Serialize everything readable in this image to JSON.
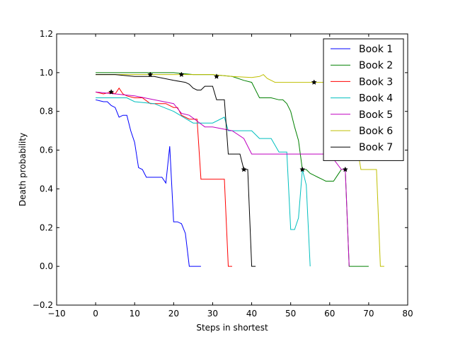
{
  "chart_data": {
    "type": "line",
    "title": "",
    "xlabel": "Steps in shortest",
    "ylabel": "Death probability",
    "xlim": [
      -10,
      80
    ],
    "ylim": [
      -0.2,
      1.2
    ],
    "xticks": [
      "−10",
      "0",
      "10",
      "20",
      "30",
      "40",
      "50",
      "60",
      "70",
      "80"
    ],
    "yticks": [
      "−0.2",
      "0.0",
      "0.2",
      "0.4",
      "0.6",
      "0.8",
      "1.0",
      "1.2"
    ],
    "grid": false,
    "legend_position": "top-right",
    "series": [
      {
        "name": "Book 1",
        "color": "#0000ff",
        "x": [
          0,
          1,
          2,
          3,
          4,
          5,
          6,
          7,
          8,
          9,
          10,
          11,
          12,
          13,
          14,
          15,
          16,
          17,
          18,
          19,
          20,
          21,
          22,
          23,
          24,
          25,
          26,
          27
        ],
        "y": [
          0.86,
          0.855,
          0.85,
          0.85,
          0.83,
          0.82,
          0.77,
          0.78,
          0.78,
          0.7,
          0.64,
          0.51,
          0.5,
          0.46,
          0.46,
          0.46,
          0.46,
          0.46,
          0.43,
          0.62,
          0.23,
          0.23,
          0.22,
          0.17,
          0.0,
          0.0,
          0.0,
          0.0
        ],
        "markers": []
      },
      {
        "name": "Book 2",
        "color": "#008000",
        "x": [
          0,
          10,
          20,
          25,
          30,
          35,
          38,
          40,
          42,
          43,
          45,
          47,
          48,
          49,
          50,
          51,
          52,
          53,
          54,
          55,
          56,
          57,
          58,
          59,
          60,
          61,
          62,
          63,
          64,
          65,
          68,
          70
        ],
        "y": [
          1.0,
          1.0,
          1.0,
          0.99,
          0.99,
          0.98,
          0.96,
          0.95,
          0.87,
          0.87,
          0.87,
          0.86,
          0.86,
          0.84,
          0.8,
          0.72,
          0.65,
          0.5,
          0.5,
          0.48,
          0.47,
          0.46,
          0.45,
          0.44,
          0.44,
          0.44,
          0.47,
          0.5,
          0.5,
          0.0,
          0.0,
          0.0
        ],
        "markers": [
          [
            14,
            0.99
          ],
          [
            22,
            0.99
          ],
          [
            31,
            0.98
          ],
          [
            53,
            0.5
          ],
          [
            64,
            0.5
          ]
        ]
      },
      {
        "name": "Book 3",
        "color": "#ff0000",
        "x": [
          0,
          2,
          4,
          5,
          6,
          7,
          8,
          10,
          12,
          14,
          16,
          18,
          20,
          21,
          22,
          24,
          26,
          27,
          28,
          30,
          32,
          33,
          34,
          35
        ],
        "y": [
          0.9,
          0.89,
          0.9,
          0.89,
          0.92,
          0.89,
          0.88,
          0.87,
          0.87,
          0.84,
          0.84,
          0.84,
          0.82,
          0.82,
          0.78,
          0.76,
          0.76,
          0.45,
          0.45,
          0.45,
          0.45,
          0.45,
          0.0,
          0.0
        ],
        "markers": [
          [
            4,
            0.9
          ]
        ]
      },
      {
        "name": "Book 4",
        "color": "#00bfbf",
        "x": [
          0,
          5,
          8,
          10,
          15,
          20,
          25,
          30,
          33,
          34,
          35,
          38,
          40,
          42,
          45,
          47,
          49,
          50,
          51,
          52,
          53,
          54,
          55
        ],
        "y": [
          0.87,
          0.87,
          0.87,
          0.85,
          0.84,
          0.8,
          0.74,
          0.74,
          0.77,
          0.7,
          0.7,
          0.7,
          0.7,
          0.66,
          0.66,
          0.59,
          0.59,
          0.19,
          0.19,
          0.25,
          0.5,
          0.42,
          0.0
        ],
        "markers": []
      },
      {
        "name": "Book 5",
        "color": "#bf00bf",
        "x": [
          0,
          5,
          10,
          15,
          20,
          22,
          24,
          26,
          28,
          30,
          35,
          38,
          40,
          45,
          50,
          55,
          60,
          63,
          64,
          65
        ],
        "y": [
          0.9,
          0.89,
          0.88,
          0.86,
          0.84,
          0.79,
          0.78,
          0.75,
          0.72,
          0.72,
          0.7,
          0.66,
          0.58,
          0.58,
          0.58,
          0.58,
          0.58,
          0.5,
          0.5,
          0.0
        ],
        "markers": []
      },
      {
        "name": "Book 6",
        "color": "#bfbf00",
        "x": [
          0,
          10,
          20,
          30,
          35,
          40,
          42,
          43,
          44,
          45,
          46,
          50,
          55,
          60,
          65,
          67,
          68,
          70,
          72,
          73,
          74
        ],
        "y": [
          0.99,
          0.99,
          0.99,
          0.99,
          0.98,
          0.975,
          0.98,
          0.99,
          0.97,
          0.96,
          0.95,
          0.95,
          0.95,
          0.95,
          0.95,
          0.62,
          0.5,
          0.5,
          0.5,
          0.0,
          0.0
        ],
        "markers": [
          [
            56,
            0.95
          ]
        ]
      },
      {
        "name": "Book 7",
        "color": "#000000",
        "x": [
          0,
          5,
          10,
          15,
          20,
          23,
          24,
          25,
          26,
          27,
          28,
          29,
          30,
          31,
          32,
          33,
          34,
          35,
          36,
          37,
          38,
          39,
          40,
          41
        ],
        "y": [
          0.99,
          0.99,
          0.98,
          0.98,
          0.96,
          0.95,
          0.94,
          0.92,
          0.91,
          0.91,
          0.93,
          0.93,
          0.93,
          0.86,
          0.86,
          0.86,
          0.58,
          0.58,
          0.58,
          0.58,
          0.5,
          0.5,
          0.0,
          0.0
        ],
        "markers": [
          [
            38,
            0.5
          ]
        ]
      }
    ]
  }
}
